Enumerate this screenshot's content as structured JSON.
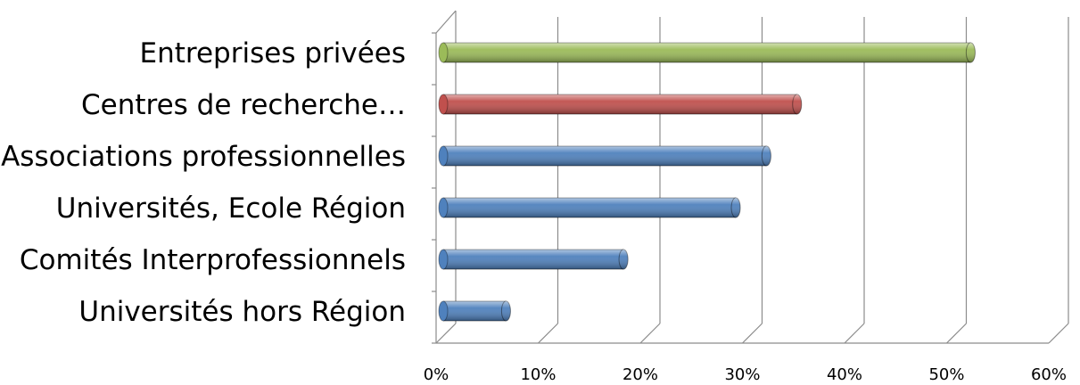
{
  "chart_data": {
    "type": "bar",
    "orientation": "horizontal",
    "categories": [
      "Entreprises privées",
      "Centres de recherche…",
      "Associations professionnelles",
      "Universités, Ecole Région",
      "Comités Interprofessionnels",
      "Universités hors Région"
    ],
    "values": [
      52,
      35,
      32,
      29,
      18,
      6.5
    ],
    "bar_colors": [
      "#9bbb59",
      "#c0504d",
      "#4f81bd",
      "#4f81bd",
      "#4f81bd",
      "#4f81bd"
    ],
    "x_ticks": [
      "0%",
      "10%",
      "20%",
      "30%",
      "40%",
      "50%",
      "60%"
    ],
    "xlim": [
      0,
      60
    ],
    "grid": true,
    "title": "",
    "xlabel": "",
    "ylabel": ""
  }
}
